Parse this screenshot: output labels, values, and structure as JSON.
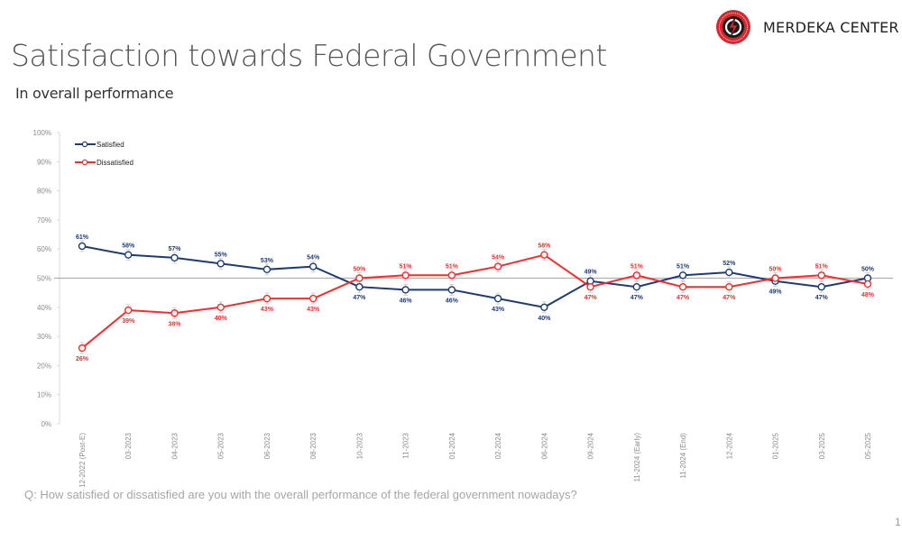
{
  "header": {
    "title": "Satisfaction towards Federal Government",
    "subtitle": "In overall performance",
    "logo_text": "MERDEKA CENTER",
    "logo_icon": "merdeka-center-emblem"
  },
  "footer": {
    "question": "Q: How satisfied or dissatisfied are you with the overall performance of the federal government nowadays?",
    "page_number": "1"
  },
  "colors": {
    "satisfied": "#1f3a78",
    "dissatisfied": "#ff2a2a",
    "reference_line": "#b0b0b0",
    "axis": "#d9d9d9"
  },
  "chart_data": {
    "type": "line",
    "title": "Satisfaction towards Federal Government",
    "subtitle": "In overall performance",
    "xlabel": "",
    "ylabel": "",
    "ylim": [
      0,
      100
    ],
    "yticks": [
      "0%",
      "10%",
      "20%",
      "30%",
      "40%",
      "50%",
      "60%",
      "70%",
      "80%",
      "90%",
      "100%"
    ],
    "reference_line": 50,
    "grid": false,
    "legend_position": "top-left",
    "categories": [
      "12-2022 (Post-E)",
      "03-2023",
      "04-2023",
      "05-2023",
      "06-2023",
      "08-2023",
      "10-2023",
      "11-2023",
      "01-2024",
      "02-2024",
      "06-2024",
      "09-2024",
      "11-2024 (Early)",
      "11-2024 (End)",
      "12-2024",
      "01-2025",
      "03-2025",
      "05-2025"
    ],
    "series": [
      {
        "name": "Satisfied",
        "color": "#1f3a78",
        "label_position": "above",
        "values": [
          61,
          58,
          57,
          55,
          53,
          54,
          47,
          46,
          46,
          43,
          40,
          49,
          47,
          51,
          52,
          49,
          47,
          50
        ],
        "labels": [
          "61%",
          "58%",
          "57%",
          "55%",
          "53%",
          "54%",
          "47%",
          "46%",
          "46%",
          "43%",
          "40%",
          "49%",
          "47%",
          "51%",
          "52%",
          "49%",
          "47%",
          "50%"
        ]
      },
      {
        "name": "Dissatisfied",
        "color": "#ff2a2a",
        "label_position": "below",
        "values": [
          26,
          39,
          38,
          40,
          43,
          43,
          50,
          51,
          51,
          54,
          58,
          47,
          51,
          47,
          47,
          50,
          51,
          48
        ],
        "labels": [
          "26%",
          "39%",
          "38%",
          "40%",
          "43%",
          "43%",
          "50%",
          "51%",
          "51%",
          "54%",
          "58%",
          "47%",
          "51%",
          "47%",
          "47%",
          "50%",
          "51%",
          "48%"
        ]
      }
    ]
  }
}
